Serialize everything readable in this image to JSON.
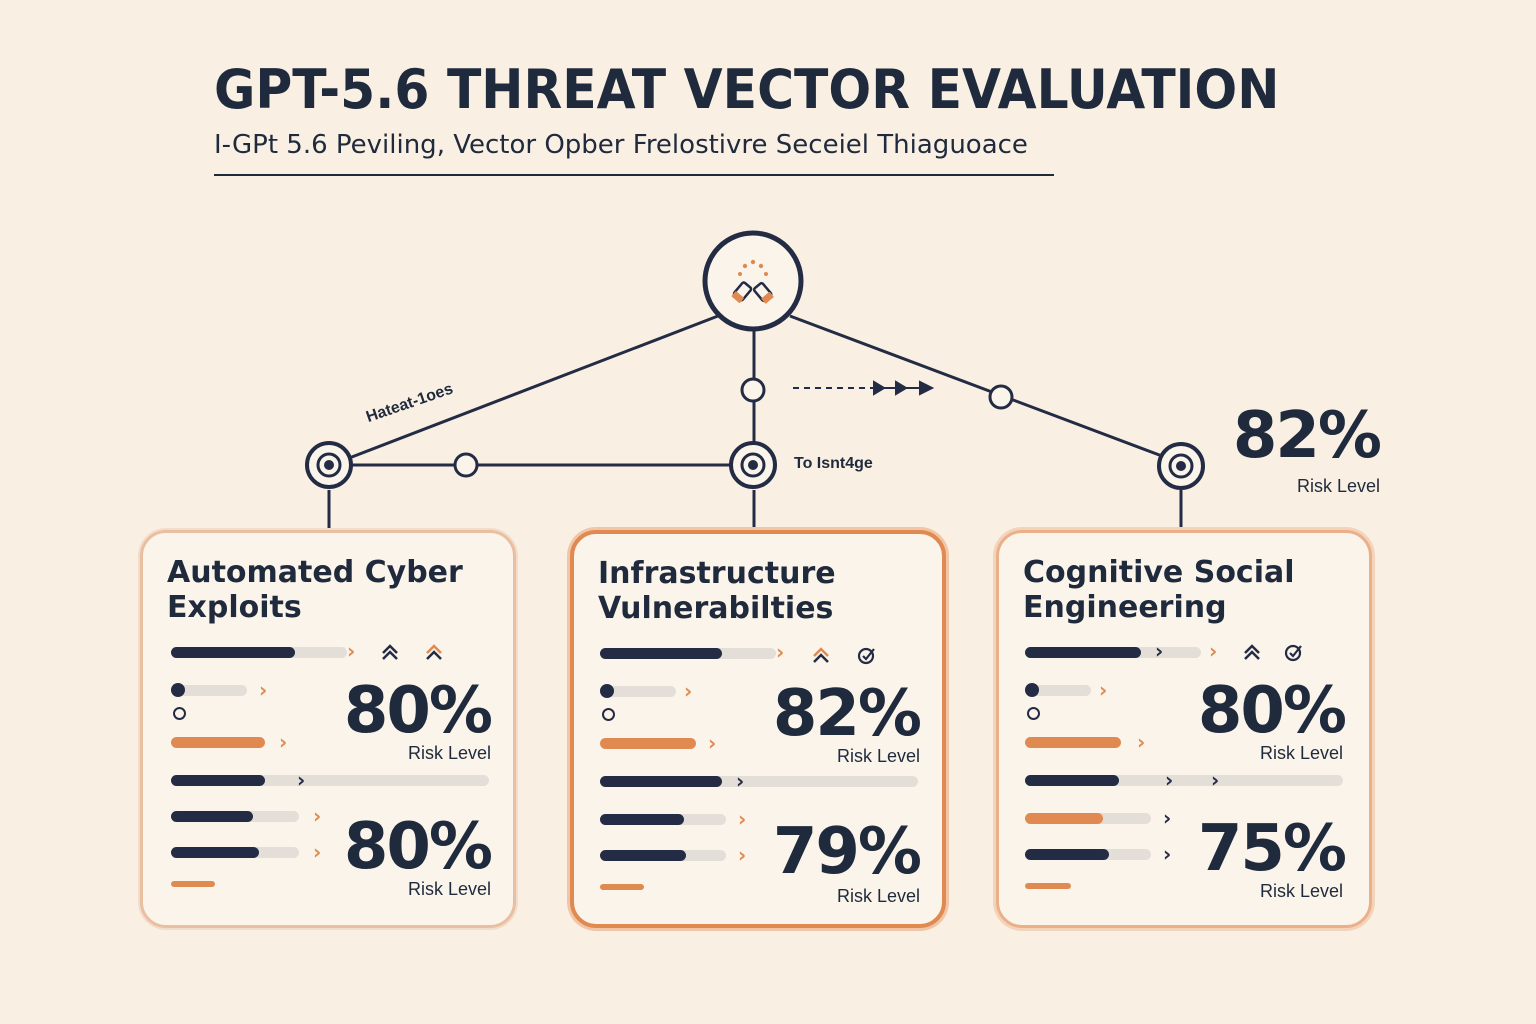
{
  "header": {
    "title": "GPT-5.6 THREAT VECTOR EVALUATION",
    "subtitle": "I-GPt 5.6 Peviling, Vector Opber Frelostivre Seceiel Thiaguoace"
  },
  "network": {
    "edge_label_left": "Hateat-1oes",
    "edge_label_center": "To Isnt4ge",
    "root_icon": "two-hands-icon"
  },
  "floating_stat": {
    "value": "82%",
    "label": "Risk Level"
  },
  "cards": [
    {
      "title": "Automated Cyber Exploits",
      "primary": {
        "value": "80%",
        "label": "Risk Level"
      },
      "secondary": {
        "value": "80%",
        "label": "Risk Level"
      }
    },
    {
      "title": "Infrastructure Vulnerabilties",
      "primary": {
        "value": "82%",
        "label": "Risk Level"
      },
      "secondary": {
        "value": "79%",
        "label": "Risk Level"
      }
    },
    {
      "title": "Cognitive Social Engineering",
      "primary": {
        "value": "80%",
        "label": "Risk Level"
      },
      "secondary": {
        "value": "75%",
        "label": "Risk Level"
      }
    }
  ],
  "colors": {
    "navy": "#232c44",
    "accent": "#e08a52",
    "background": "#f9f0e3",
    "track": "#e3ded7"
  }
}
